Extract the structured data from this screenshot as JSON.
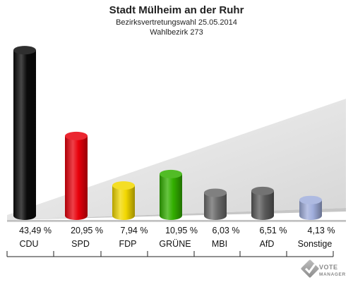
{
  "chart_data": {
    "type": "bar",
    "title": "Stadt Mülheim an der Ruhr",
    "subtitle": "Bezirksvertretungswahl 25.05.2014",
    "subtitle2": "Wahlbezirk 273",
    "categories": [
      "CDU",
      "SPD",
      "FDP",
      "GRÜNE",
      "MBI",
      "AfD",
      "Sonstige"
    ],
    "values": [
      43.49,
      20.95,
      7.94,
      10.95,
      6.03,
      6.51,
      4.13
    ],
    "value_labels": [
      "43,49 %",
      "20,95 %",
      "7,94 %",
      "10,95 %",
      "6,03 %",
      "6,51 %",
      "4,13 %"
    ],
    "colors": [
      "#0a0a0a",
      "#e8000b",
      "#f2d800",
      "#33b000",
      "#6a6a6a",
      "#5a5a5a",
      "#a0aedc"
    ],
    "ylim": [
      0,
      45
    ],
    "grid": false,
    "legend": "none"
  },
  "watermark": {
    "line1": "VOTE",
    "line2": "MANAGER"
  }
}
